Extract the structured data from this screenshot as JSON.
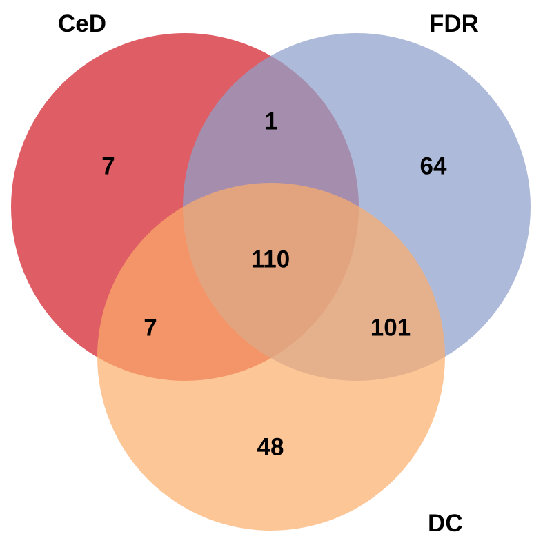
{
  "sets": [
    {
      "key": "ced",
      "label": "CeD",
      "color": "#d6303a"
    },
    {
      "key": "fdr",
      "label": "FDR",
      "color": "#8fa0ca"
    },
    {
      "key": "dc",
      "label": "DC",
      "color": "#fcae6b"
    }
  ],
  "regions": {
    "ced_only": "7",
    "fdr_only": "64",
    "dc_only": "48",
    "ced_fdr": "1",
    "ced_dc": "7",
    "fdr_dc": "101",
    "all_three": "110"
  }
}
